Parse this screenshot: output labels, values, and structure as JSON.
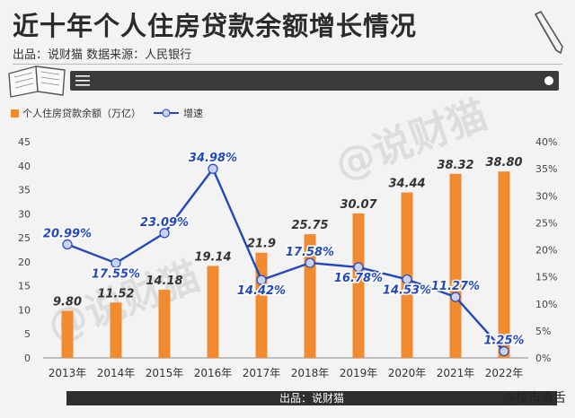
{
  "title": "近十年个人住房贷款余额增长情况",
  "subtitle": "出品：说财猫  数据来源：人民银行",
  "footer": "出品：说财猫",
  "corner_watermark": "@楼市毒舌",
  "background_watermark": "@说财猫",
  "colors": {
    "bar": "#f28b30",
    "line": "#2349b8",
    "marker_fill": "#c8d3f5",
    "banner": "#3b3b3b"
  },
  "icons": [
    "book-icon",
    "pencil-icon",
    "menu-icon"
  ],
  "legend": {
    "bar_label": "个人住房贷款余额（万亿）",
    "line_label": "增速"
  },
  "chart_data": {
    "type": "bar",
    "categories": [
      "2013年",
      "2014年",
      "2015年",
      "2016年",
      "2017年",
      "2018年",
      "2019年",
      "2020年",
      "2021年",
      "2022年"
    ],
    "series": [
      {
        "name": "个人住房贷款余额（万亿）",
        "type": "bar",
        "axis": "left",
        "values": [
          9.8,
          11.52,
          14.18,
          19.14,
          21.9,
          25.75,
          30.07,
          34.44,
          38.32,
          38.8
        ],
        "labels": [
          "9.80",
          "11.52",
          "14.18",
          "19.14",
          "21.9",
          "25.75",
          "30.07",
          "34.44",
          "38.32",
          "38.80"
        ]
      },
      {
        "name": "增速",
        "type": "line",
        "axis": "right",
        "values": [
          20.99,
          17.55,
          23.09,
          34.98,
          14.42,
          17.58,
          16.78,
          14.53,
          11.27,
          1.25
        ],
        "labels": [
          "20.99%",
          "17.55%",
          "23.09%",
          "34.98%",
          "14.42%",
          "17.58%",
          "16.78%",
          "14.53%",
          "11.27%",
          "1.25%"
        ]
      }
    ],
    "y_left": {
      "ylim": [
        0,
        45
      ],
      "ticks": [
        "0",
        "5",
        "10",
        "15",
        "20",
        "25",
        "30",
        "35",
        "40",
        "45"
      ]
    },
    "y_right": {
      "ylim": [
        0,
        40
      ],
      "ticks": [
        "0%",
        "5%",
        "10%",
        "15%",
        "20%",
        "25%",
        "30%",
        "35%",
        "40%"
      ]
    },
    "grid": false,
    "legend_position": "top-left"
  }
}
